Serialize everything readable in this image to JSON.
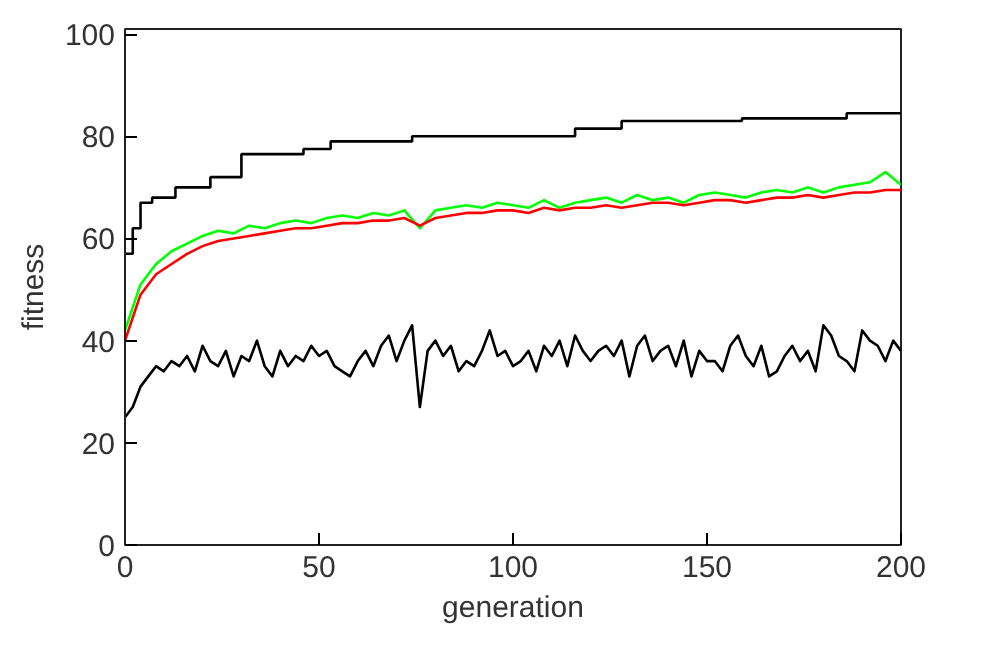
{
  "chart_data": {
    "type": "line",
    "xlabel": "generation",
    "ylabel": "fitness",
    "xlim": [
      0,
      200
    ],
    "ylim": [
      0,
      101
    ],
    "xticks": [
      0,
      50,
      100,
      150,
      200
    ],
    "yticks": [
      0,
      20,
      40,
      60,
      80,
      100
    ],
    "grid": false,
    "series": [
      {
        "type": "step",
        "color": "#000000",
        "x": [
          0,
          2,
          4,
          7,
          13,
          22,
          30,
          46,
          53,
          74,
          116,
          128,
          159,
          186,
          200
        ],
        "values": [
          57,
          62,
          67,
          68,
          70,
          72,
          76.5,
          77.5,
          79,
          80,
          81.5,
          83,
          83.5,
          84.5,
          84.5
        ]
      },
      {
        "color": "#00ff00",
        "x": [
          0,
          4,
          8,
          12,
          16,
          20,
          24,
          28,
          32,
          36,
          40,
          44,
          48,
          52,
          56,
          60,
          64,
          68,
          72,
          76,
          80,
          84,
          88,
          92,
          96,
          100,
          104,
          108,
          112,
          116,
          120,
          124,
          128,
          132,
          136,
          140,
          144,
          148,
          152,
          156,
          160,
          164,
          168,
          172,
          176,
          180,
          184,
          188,
          192,
          196,
          200
        ],
        "values": [
          42,
          51,
          55,
          57.5,
          59,
          60.5,
          61.5,
          61,
          62.5,
          62,
          63,
          63.5,
          63,
          64,
          64.5,
          64,
          65,
          64.5,
          65.5,
          62,
          65.5,
          66,
          66.5,
          66,
          67,
          66.5,
          66,
          67.5,
          66,
          67,
          67.5,
          68,
          67,
          68.5,
          67.5,
          68,
          67,
          68.5,
          69,
          68.5,
          68,
          69,
          69.5,
          69,
          70,
          69,
          70,
          70.5,
          71,
          73,
          70.5
        ]
      },
      {
        "color": "#ff0000",
        "x": [
          0,
          4,
          8,
          12,
          16,
          20,
          24,
          28,
          32,
          36,
          40,
          44,
          48,
          52,
          56,
          60,
          64,
          68,
          72,
          76,
          80,
          84,
          88,
          92,
          96,
          100,
          104,
          108,
          112,
          116,
          120,
          124,
          128,
          132,
          136,
          140,
          144,
          148,
          152,
          156,
          160,
          164,
          168,
          172,
          176,
          180,
          184,
          188,
          192,
          196,
          200
        ],
        "values": [
          40,
          49,
          53,
          55,
          57,
          58.5,
          59.5,
          60,
          60.5,
          61,
          61.5,
          62,
          62,
          62.5,
          63,
          63,
          63.5,
          63.5,
          64,
          62.5,
          64,
          64.5,
          65,
          65,
          65.5,
          65.5,
          65,
          66,
          65.5,
          66,
          66,
          66.5,
          66,
          66.5,
          67,
          67,
          66.5,
          67,
          67.5,
          67.5,
          67,
          67.5,
          68,
          68,
          68.5,
          68,
          68.5,
          69,
          69,
          69.5,
          69.5
        ]
      },
      {
        "color": "#000000",
        "x": [
          0,
          2,
          4,
          6,
          8,
          10,
          12,
          14,
          16,
          18,
          20,
          22,
          24,
          26,
          28,
          30,
          32,
          34,
          36,
          38,
          40,
          42,
          44,
          46,
          48,
          50,
          52,
          54,
          56,
          58,
          60,
          62,
          64,
          66,
          68,
          70,
          72,
          74,
          76,
          78,
          80,
          82,
          84,
          86,
          88,
          90,
          92,
          94,
          96,
          98,
          100,
          102,
          104,
          106,
          108,
          110,
          112,
          114,
          116,
          118,
          120,
          122,
          124,
          126,
          128,
          130,
          132,
          134,
          136,
          138,
          140,
          142,
          144,
          146,
          148,
          150,
          152,
          154,
          156,
          158,
          160,
          162,
          164,
          166,
          168,
          170,
          172,
          174,
          176,
          178,
          180,
          182,
          184,
          186,
          188,
          190,
          192,
          194,
          196,
          198,
          200
        ],
        "values": [
          25,
          27,
          31,
          33,
          35,
          34,
          36,
          35,
          37,
          34,
          39,
          36,
          35,
          38,
          33,
          37,
          36,
          40,
          35,
          33,
          38,
          35,
          37,
          36,
          39,
          37,
          38,
          35,
          34,
          33,
          36,
          38,
          35,
          39,
          41,
          36,
          40,
          43,
          27,
          38,
          40,
          37,
          39,
          34,
          36,
          35,
          38,
          42,
          37,
          38,
          35,
          36,
          38,
          34,
          39,
          37,
          40,
          35,
          41,
          38,
          36,
          38,
          39,
          37,
          40,
          33,
          39,
          41,
          36,
          38,
          39,
          35,
          40,
          33,
          38,
          36,
          36,
          34,
          39,
          41,
          37,
          35,
          39,
          33,
          34,
          37,
          39,
          36,
          38,
          34,
          43,
          41,
          37,
          36,
          34,
          42,
          40,
          39,
          36,
          40,
          38
        ]
      }
    ]
  }
}
